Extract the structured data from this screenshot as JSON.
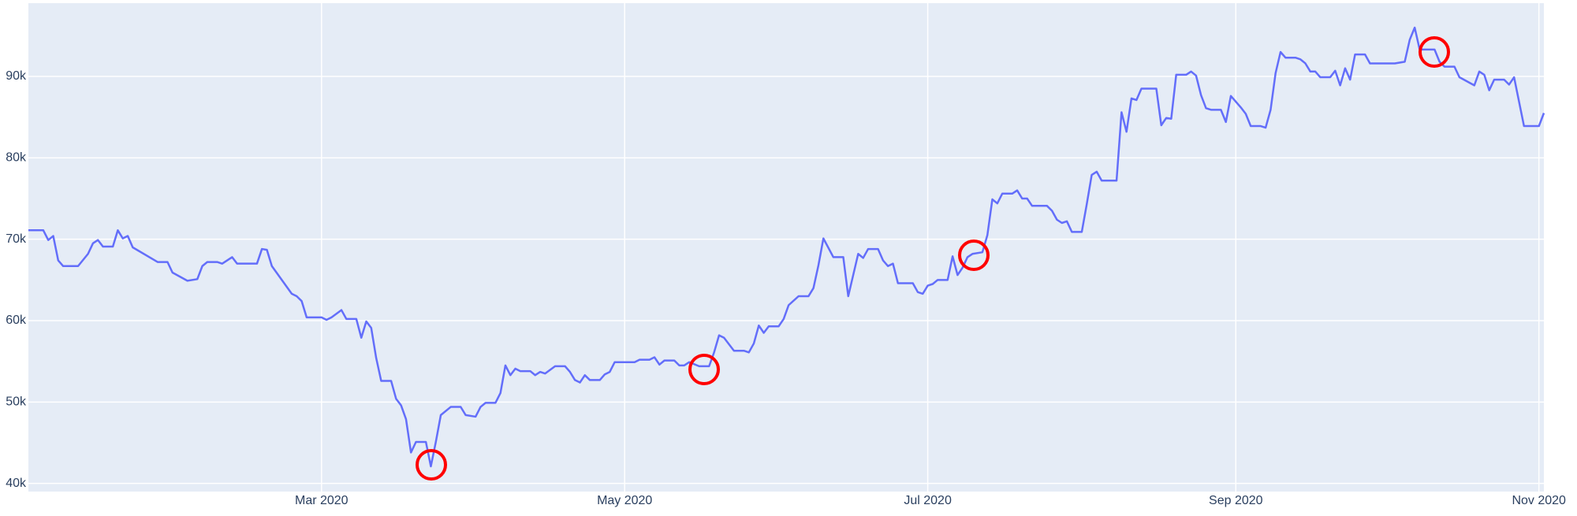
{
  "chart_data": {
    "type": "line",
    "x": [
      "2020-01-02",
      "2020-01-05",
      "2020-01-06",
      "2020-01-07",
      "2020-01-08",
      "2020-01-09",
      "2020-01-12",
      "2020-01-14",
      "2020-01-15",
      "2020-01-16",
      "2020-01-17",
      "2020-01-19",
      "2020-01-20",
      "2020-01-21",
      "2020-01-22",
      "2020-01-23",
      "2020-01-28",
      "2020-01-30",
      "2020-01-31",
      "2020-02-03",
      "2020-02-05",
      "2020-02-06",
      "2020-02-07",
      "2020-02-09",
      "2020-02-10",
      "2020-02-12",
      "2020-02-13",
      "2020-02-17",
      "2020-02-18",
      "2020-02-19",
      "2020-02-20",
      "2020-02-24",
      "2020-02-25",
      "2020-02-26",
      "2020-02-27",
      "2020-03-01",
      "2020-03-02",
      "2020-03-03",
      "2020-03-05",
      "2020-03-06",
      "2020-03-08",
      "2020-03-09",
      "2020-03-10",
      "2020-03-11",
      "2020-03-12",
      "2020-03-13",
      "2020-03-15",
      "2020-03-16",
      "2020-03-17",
      "2020-03-18",
      "2020-03-19",
      "2020-03-20",
      "2020-03-22",
      "2020-03-23",
      "2020-03-24",
      "2020-03-25",
      "2020-03-27",
      "2020-03-29",
      "2020-03-30",
      "2020-04-01",
      "2020-04-02",
      "2020-04-03",
      "2020-04-05",
      "2020-04-06",
      "2020-04-07",
      "2020-04-08",
      "2020-04-09",
      "2020-04-10",
      "2020-04-12",
      "2020-04-13",
      "2020-04-14",
      "2020-04-15",
      "2020-04-17",
      "2020-04-19",
      "2020-04-20",
      "2020-04-21",
      "2020-04-22",
      "2020-04-23",
      "2020-04-24",
      "2020-04-26",
      "2020-04-27",
      "2020-04-28",
      "2020-04-29",
      "2020-05-03",
      "2020-05-04",
      "2020-05-06",
      "2020-05-07",
      "2020-05-08",
      "2020-05-09",
      "2020-05-11",
      "2020-05-12",
      "2020-05-13",
      "2020-05-14",
      "2020-05-16",
      "2020-05-18",
      "2020-05-19",
      "2020-05-20",
      "2020-05-21",
      "2020-05-23",
      "2020-05-25",
      "2020-05-26",
      "2020-05-27",
      "2020-05-28",
      "2020-05-29",
      "2020-05-30",
      "2020-06-01",
      "2020-06-02",
      "2020-06-03",
      "2020-06-05",
      "2020-06-07",
      "2020-06-08",
      "2020-06-09",
      "2020-06-10",
      "2020-06-12",
      "2020-06-14",
      "2020-06-15",
      "2020-06-17",
      "2020-06-18",
      "2020-06-19",
      "2020-06-21",
      "2020-06-22",
      "2020-06-23",
      "2020-06-24",
      "2020-06-25",
      "2020-06-28",
      "2020-06-29",
      "2020-06-30",
      "2020-07-01",
      "2020-07-02",
      "2020-07-03",
      "2020-07-05",
      "2020-07-06",
      "2020-07-07",
      "2020-07-08",
      "2020-07-09",
      "2020-07-10",
      "2020-07-12",
      "2020-07-13",
      "2020-07-14",
      "2020-07-15",
      "2020-07-16",
      "2020-07-18",
      "2020-07-19",
      "2020-07-20",
      "2020-07-21",
      "2020-07-22",
      "2020-07-25",
      "2020-07-26",
      "2020-07-27",
      "2020-07-28",
      "2020-07-29",
      "2020-07-30",
      "2020-08-01",
      "2020-08-02",
      "2020-08-03",
      "2020-08-04",
      "2020-08-05",
      "2020-08-08",
      "2020-08-09",
      "2020-08-10",
      "2020-08-11",
      "2020-08-12",
      "2020-08-13",
      "2020-08-16",
      "2020-08-17",
      "2020-08-18",
      "2020-08-19",
      "2020-08-20",
      "2020-08-22",
      "2020-08-23",
      "2020-08-24",
      "2020-08-25",
      "2020-08-26",
      "2020-08-27",
      "2020-08-29",
      "2020-08-30",
      "2020-08-31",
      "2020-09-02",
      "2020-09-03",
      "2020-09-04",
      "2020-09-06",
      "2020-09-07",
      "2020-09-08",
      "2020-09-09",
      "2020-09-10",
      "2020-09-11",
      "2020-09-13",
      "2020-09-14",
      "2020-09-15",
      "2020-09-16",
      "2020-09-17",
      "2020-09-18",
      "2020-09-20",
      "2020-09-21",
      "2020-09-22",
      "2020-09-23",
      "2020-09-24",
      "2020-09-25",
      "2020-09-27",
      "2020-09-28",
      "2020-10-03",
      "2020-10-05",
      "2020-10-06",
      "2020-10-07",
      "2020-10-08",
      "2020-10-11",
      "2020-10-12",
      "2020-10-13",
      "2020-10-15",
      "2020-10-16",
      "2020-10-19",
      "2020-10-20",
      "2020-10-21",
      "2020-10-22",
      "2020-10-23",
      "2020-10-25",
      "2020-10-26",
      "2020-10-27",
      "2020-10-29",
      "2020-11-01",
      "2020-11-02"
    ],
    "series": [
      {
        "color": "#636efa",
        "values": [
          71100,
          71100,
          69900,
          70400,
          67400,
          66700,
          66700,
          68200,
          69500,
          69900,
          69100,
          69100,
          71100,
          70100,
          70400,
          69000,
          67200,
          67200,
          65900,
          64900,
          65100,
          66700,
          67200,
          67200,
          67000,
          67800,
          67000,
          67000,
          68800,
          68700,
          66700,
          63300,
          63000,
          62400,
          60400,
          60400,
          60100,
          60400,
          61300,
          60200,
          60200,
          57900,
          59900,
          59100,
          55400,
          52600,
          52600,
          50400,
          49600,
          47900,
          43800,
          45100,
          45100,
          42100,
          45100,
          48400,
          49400,
          49400,
          48400,
          48200,
          49400,
          49900,
          49900,
          51100,
          54500,
          53300,
          54100,
          53800,
          53800,
          53300,
          53700,
          53500,
          54400,
          54400,
          53700,
          52700,
          52400,
          53300,
          52700,
          52700,
          53400,
          53700,
          54900,
          54900,
          55200,
          55200,
          55500,
          54600,
          55100,
          55100,
          54500,
          54500,
          54900,
          54400,
          54400,
          56100,
          58200,
          57900,
          56300,
          56300,
          56100,
          57200,
          59400,
          58500,
          59300,
          59300,
          60200,
          61900,
          63000,
          63000,
          64000,
          66800,
          70100,
          67800,
          67800,
          63000,
          68200,
          67700,
          68800,
          68800,
          67400,
          66700,
          67000,
          64600,
          64600,
          63500,
          63300,
          64300,
          64500,
          65000,
          65000,
          67900,
          65600,
          66500,
          67800,
          68200,
          68400,
          70500,
          74900,
          74400,
          75600,
          75600,
          76000,
          75000,
          75000,
          74100,
          74100,
          73500,
          72400,
          72000,
          72200,
          70900,
          70900,
          74300,
          77900,
          78300,
          77200,
          77200,
          85600,
          83200,
          87300,
          87100,
          88500,
          88500,
          84000,
          84900,
          84800,
          90200,
          90200,
          90600,
          90100,
          87700,
          86100,
          85900,
          85900,
          84400,
          87600,
          86200,
          85400,
          83900,
          83900,
          83700,
          85900,
          90400,
          93000,
          92300,
          92300,
          92100,
          91600,
          90600,
          90600,
          89900,
          89900,
          90700,
          88900,
          91000,
          89600,
          92700,
          92700,
          91600,
          91600,
          91800,
          94500,
          96000,
          93300,
          93300,
          91800,
          91200,
          91200,
          89900,
          88900,
          90600,
          90200,
          88300,
          89600,
          89600,
          89000,
          89900,
          83900,
          83900,
          85500
        ]
      }
    ],
    "xlim": [
      "2020-01-02",
      "2020-11-02"
    ],
    "xticks": [
      {
        "value": "2020-03-01",
        "label": "Mar 2020"
      },
      {
        "value": "2020-05-01",
        "label": "May 2020"
      },
      {
        "value": "2020-07-01",
        "label": "Jul 2020"
      },
      {
        "value": "2020-09-01",
        "label": "Sep 2020"
      },
      {
        "value": "2020-11-01",
        "label": "Nov 2020"
      }
    ],
    "ylim": [
      39000,
      99000
    ],
    "yticks": [
      {
        "value": 40000,
        "label": "40k"
      },
      {
        "value": 50000,
        "label": "50k"
      },
      {
        "value": 60000,
        "label": "60k"
      },
      {
        "value": 70000,
        "label": "70k"
      },
      {
        "value": 80000,
        "label": "80k"
      },
      {
        "value": 90000,
        "label": "90k"
      }
    ],
    "grid": true
  }
}
